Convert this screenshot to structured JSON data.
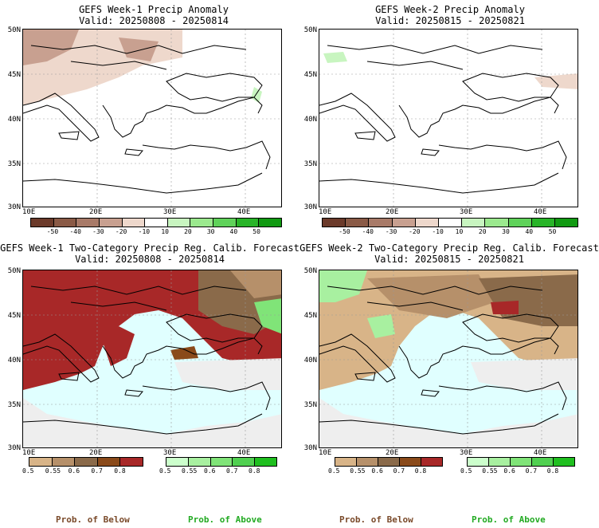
{
  "panels": [
    {
      "title": "GEFS Week-1 Precip Anomaly",
      "valid": "Valid: 20250808 - 20250814"
    },
    {
      "title": "GEFS Week-2 Precip Anomaly",
      "valid": "Valid: 20250815 - 20250821"
    },
    {
      "title": "GEFS Week-1 Two-Category Precip Reg. Calib. Forecast",
      "valid": "Valid: 20250808 - 20250814"
    },
    {
      "title": "GEFS Week-2 Two-Category Precip Reg. Calib. Forecast",
      "valid": "Valid: 20250815 - 20250821"
    }
  ],
  "lat_labels": [
    "50N",
    "45N",
    "40N",
    "35N",
    "30N"
  ],
  "lon_labels": [
    "10E",
    "20E",
    "30E",
    "40E"
  ],
  "anomaly_scale": {
    "labels": [
      "-50",
      "-40",
      "-30",
      "-20",
      "-10",
      "10",
      "20",
      "30",
      "40",
      "50"
    ],
    "colors": [
      "#6b3a2a",
      "#8a5a46",
      "#a87a68",
      "#c8a090",
      "#eed8cc",
      "#ffffff",
      "#c8f5c0",
      "#9be98e",
      "#5fd25a",
      "#28b428",
      "#119a12"
    ]
  },
  "prob_below_scale": {
    "labels": [
      "0.5",
      "0.55",
      "0.6",
      "0.7",
      "0.8"
    ],
    "colors": [
      "#d8b488",
      "#b6906a",
      "#8a6a4a",
      "#8a4a1a",
      "#a82828"
    ]
  },
  "prob_above_scale": {
    "labels": [
      "0.5",
      "0.55",
      "0.6",
      "0.7",
      "0.8"
    ],
    "colors": [
      "#ccffcc",
      "#a8f0a0",
      "#80e478",
      "#50d050",
      "#1fbf1f"
    ]
  },
  "footer": {
    "below": "Prob. of Below",
    "above": "Prob. of Above"
  },
  "colors": {
    "sea": "#e0ffff",
    "land_nodata": "#eeeeee",
    "below_land": "#d8b488"
  }
}
